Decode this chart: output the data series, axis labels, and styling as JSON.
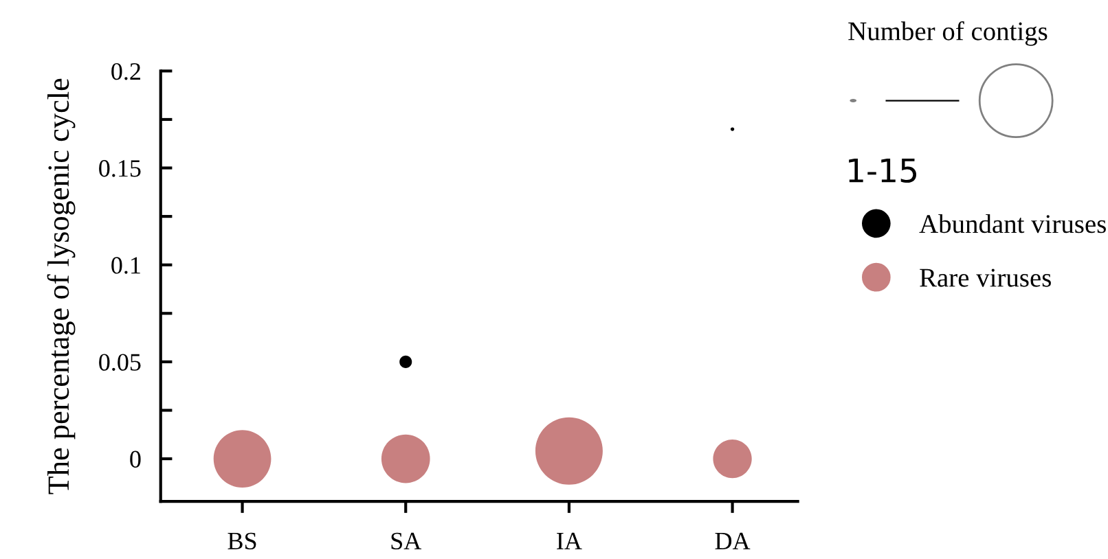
{
  "chart_data": {
    "type": "bubble",
    "ylabel": "The percentage of lysogenic cycle",
    "categories": [
      "BS",
      "SA",
      "IA",
      "DA"
    ],
    "series": [
      {
        "name": "Abundant viruses",
        "color": "#000000",
        "values": [
          null,
          0.05,
          null,
          0.17
        ],
        "sizes": [
          null,
          0.034,
          null,
          0.003
        ]
      },
      {
        "name": "Rare viruses",
        "color": "#c88080",
        "values": [
          0,
          0,
          0.004,
          0
        ],
        "sizes": [
          0.73,
          0.52,
          1,
          0.33
        ]
      }
    ],
    "ylim": [
      -0.022,
      0.2
    ],
    "yticks": [
      0,
      {
        "value": 0.025,
        "label": null
      },
      0.05,
      {
        "value": 0.075,
        "label": null
      },
      0.1,
      {
        "value": 0.125,
        "label": null
      },
      0.15,
      {
        "value": 0.175,
        "label": null
      },
      0.2
    ],
    "legend_title": "Number of contigs",
    "annotations": [
      "1-15"
    ],
    "legend": "right",
    "grid": false
  }
}
